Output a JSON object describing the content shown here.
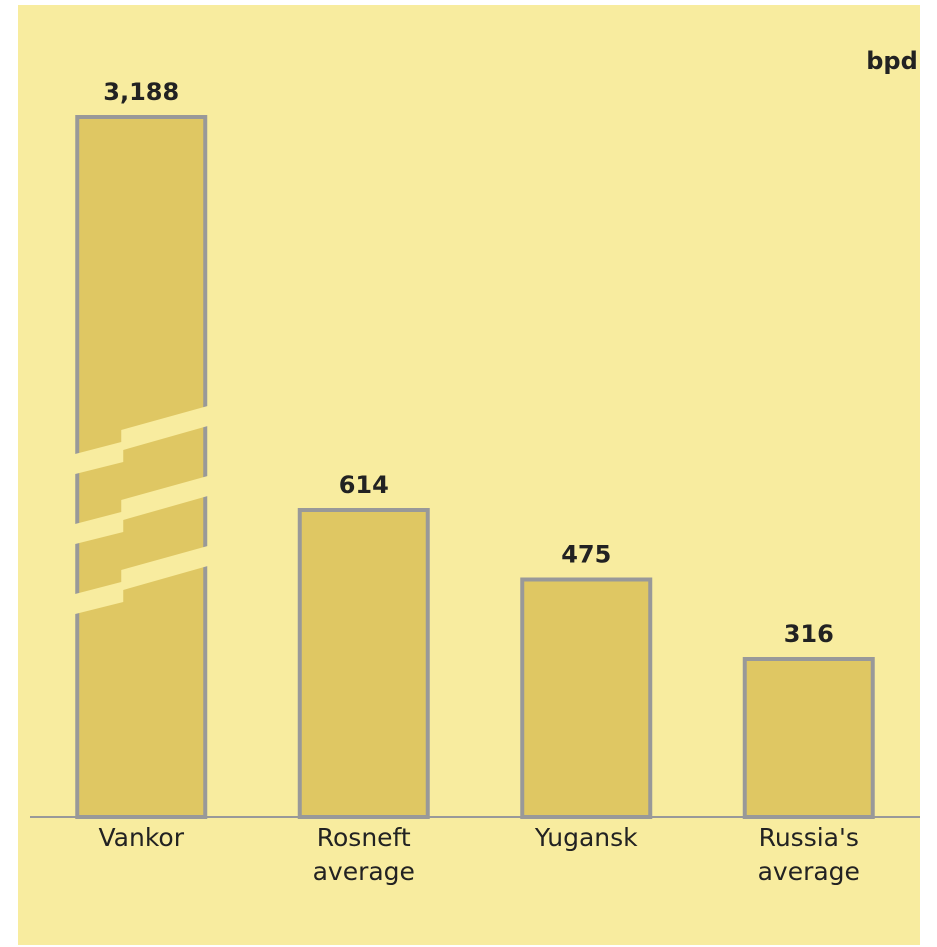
{
  "chart_data": {
    "type": "bar",
    "unit": "bpd",
    "categories": [
      "Vankor",
      "Rosneft average",
      "Yugansk",
      "Russia's average"
    ],
    "values": [
      3188,
      614,
      475,
      316
    ],
    "value_labels": [
      "3,188",
      "614",
      "475",
      "316"
    ],
    "color": "#dfc763",
    "ylim": [
      0,
      1400
    ],
    "axis_break": true
  }
}
